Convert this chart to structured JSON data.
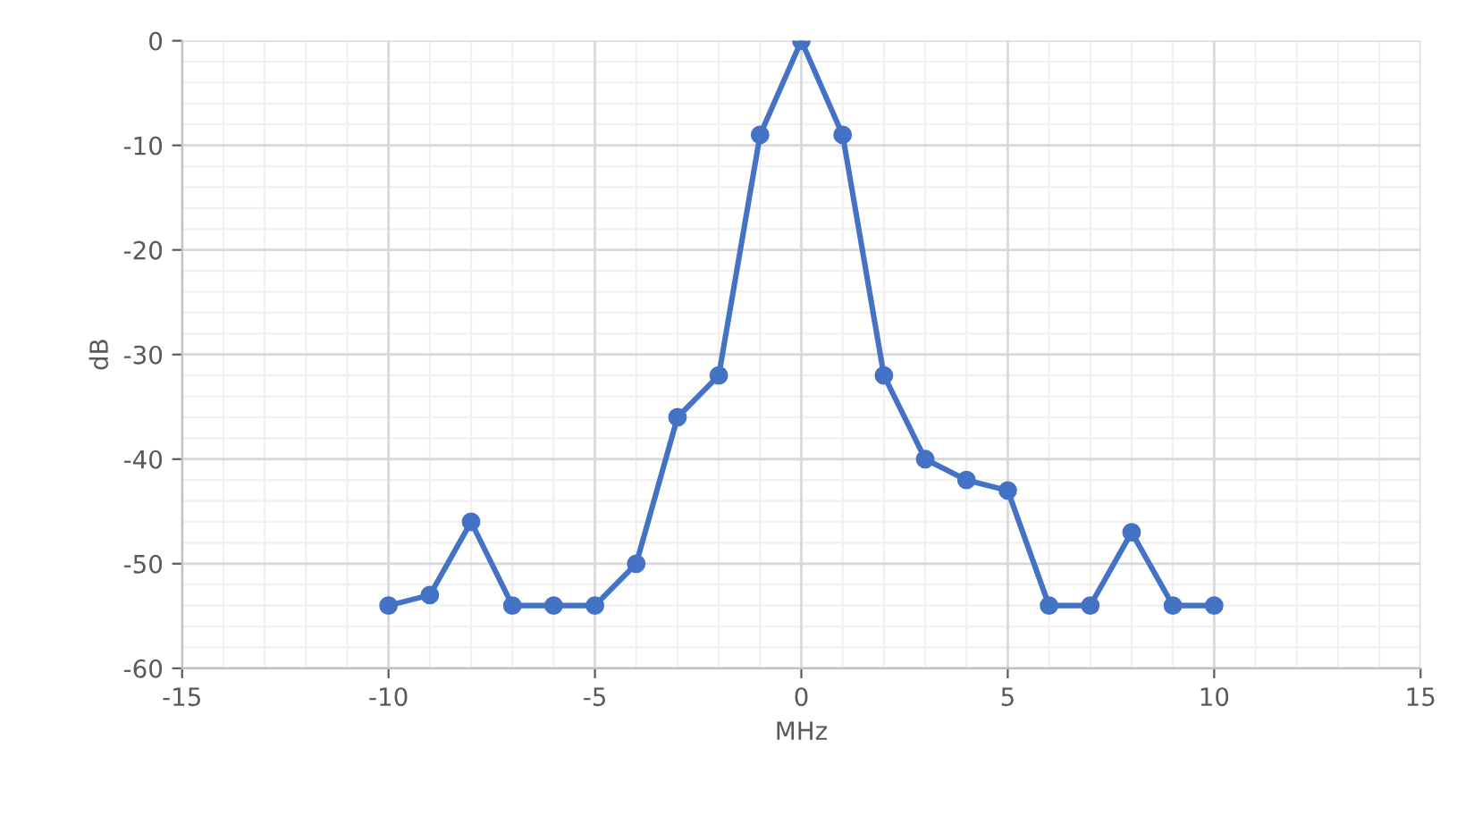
{
  "chart_data": {
    "type": "line",
    "xlabel": "MHz",
    "ylabel": "dB",
    "x": [
      -10,
      -9,
      -8,
      -7,
      -6,
      -5,
      -4,
      -3,
      -2,
      -1,
      0,
      1,
      2,
      3,
      4,
      5,
      6,
      7,
      8,
      9,
      10
    ],
    "series": [
      {
        "color": "#4472c4",
        "values": [
          -54,
          -53,
          -46,
          -54,
          -54,
          -54,
          -50,
          -36,
          -32,
          -9,
          0,
          -9,
          -32,
          -40,
          -42,
          -43,
          -54,
          -54,
          -47,
          -54,
          -54
        ]
      }
    ],
    "xlim": [
      -15,
      15
    ],
    "xticks": [
      -15,
      -10,
      -5,
      0,
      5,
      10,
      15
    ],
    "ylim": [
      -60,
      0
    ],
    "yticks": [
      -60,
      -50,
      -40,
      -30,
      -20,
      -10,
      0
    ],
    "grid": true,
    "marker": "circle",
    "line_style": "solid",
    "legend": false
  }
}
